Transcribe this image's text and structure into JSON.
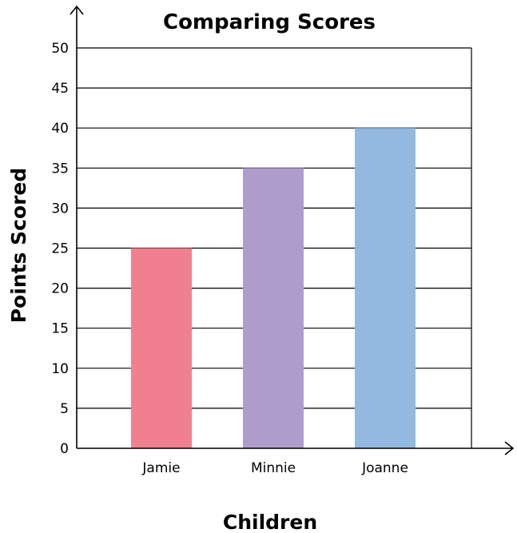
{
  "chart_data": {
    "type": "bar",
    "title": "Comparing Scores",
    "xlabel": "Children",
    "ylabel": "Points Scored",
    "categories": [
      "Jamie",
      "Minnie",
      "Joanne"
    ],
    "values": [
      25,
      35,
      40
    ],
    "colors": [
      "#f08090",
      "#ae9dcc",
      "#94b9e0"
    ],
    "ylim": [
      0,
      50
    ],
    "yticks": [
      0,
      5,
      10,
      15,
      20,
      25,
      30,
      35,
      40,
      45,
      50
    ],
    "grid": true,
    "legend": "none"
  }
}
